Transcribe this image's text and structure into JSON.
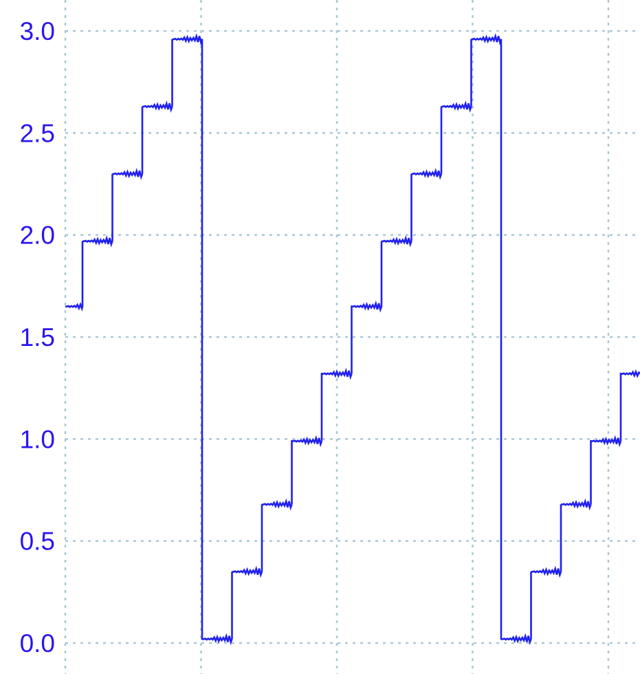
{
  "chart_data": {
    "type": "line",
    "title": "",
    "xlabel": "",
    "ylabel": "",
    "ylim": [
      0.0,
      3.0
    ],
    "yticks": [
      "0.0",
      "0.5",
      "1.0",
      "1.5",
      "2.0",
      "2.5",
      "3.0"
    ],
    "grid": true,
    "grid_style": "dotted",
    "x_gridlines": 5,
    "x_tick_labels": [],
    "series": [
      {
        "shape": "staircase with ripple, repeating ramp",
        "step_values": [
          1.65,
          1.97,
          2.3,
          2.63,
          2.96,
          0.02,
          0.35,
          0.68,
          0.99,
          1.32,
          1.65,
          1.97,
          2.3,
          2.63,
          2.96,
          0.02,
          0.35,
          0.68,
          0.99,
          1.32
        ],
        "steps_per_period": 10
      }
    ],
    "colors": {
      "line": "#1f1ff0",
      "tick_labels": "#2a14f0",
      "grid": "#a9c8d6"
    }
  }
}
